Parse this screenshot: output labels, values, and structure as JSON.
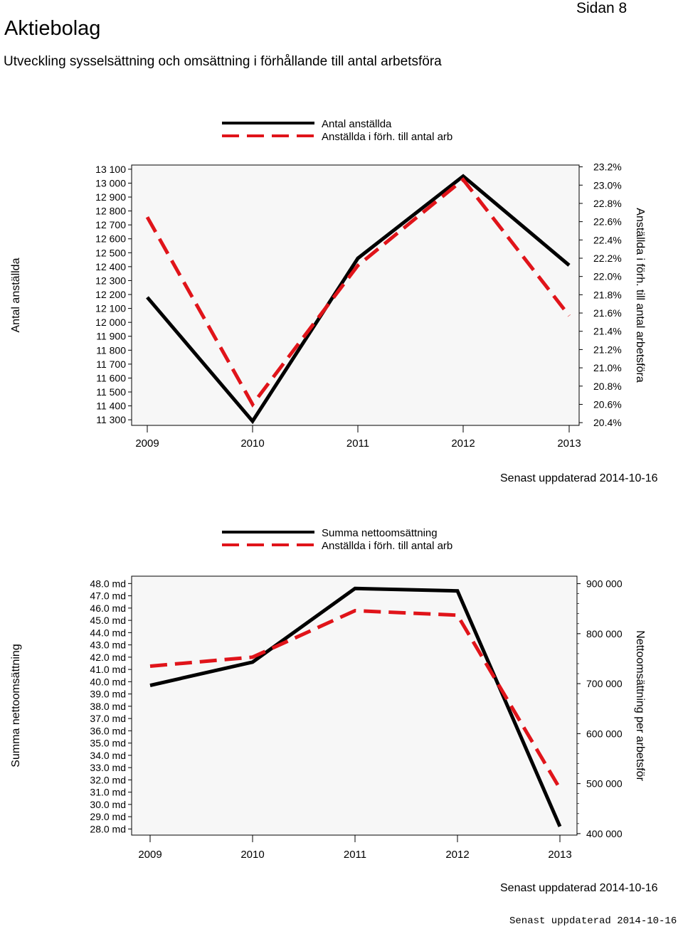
{
  "page": {
    "title": "Aktiebolag",
    "page_number": "Sidan 8",
    "subtitle": "Utveckling sysselsättning och omsättning i förhållande till antal arbetsföra",
    "footer_stamp": "Senast uppdaterad 2014-10-16"
  },
  "colors": {
    "primary_series": "#000000",
    "secondary_series": "#e0141a",
    "plot_background": "#f7f7f7"
  },
  "chart_data": [
    {
      "type": "line",
      "x": [
        2009,
        2010,
        2011,
        2012,
        2013
      ],
      "x_ticks": [
        "2009",
        "2010",
        "2011",
        "2012",
        "2013"
      ],
      "ylabel": "Antal anställda",
      "y2label": "Anställda i förh. till antal arbetsföra",
      "ylim": [
        11260,
        13130
      ],
      "y2lim": [
        20.37,
        23.22
      ],
      "y_ticks": [
        "13 100",
        "13 000",
        "12 900",
        "12 800",
        "12 700",
        "12 600",
        "12 500",
        "12 400",
        "12 300",
        "12 200",
        "12 100",
        "12 000",
        "11 900",
        "11 800",
        "11 700",
        "11 600",
        "11 500",
        "11 400",
        "11 300"
      ],
      "y2_ticks": [
        "23.2%",
        "23.0%",
        "22.8%",
        "22.6%",
        "22.4%",
        "22.2%",
        "22.0%",
        "21.8%",
        "21.6%",
        "21.4%",
        "21.2%",
        "21.0%",
        "20.8%",
        "20.6%",
        "20.4%"
      ],
      "series": [
        {
          "name": "Antal anställda",
          "axis": "left",
          "style": "solid",
          "values": [
            12180,
            11290,
            12460,
            13050,
            12410
          ]
        },
        {
          "name": "Anställda i förh. till antal arb",
          "axis": "right",
          "style": "dashed",
          "values": [
            22.65,
            20.6,
            22.12,
            23.06,
            21.57
          ]
        }
      ],
      "legend_placement": "top",
      "updated": "Senast uppdaterad 2014-10-16"
    },
    {
      "type": "line",
      "x": [
        2009,
        2010,
        2011,
        2012,
        2013
      ],
      "x_ticks": [
        "2009",
        "2010",
        "2011",
        "2012",
        "2013"
      ],
      "ylabel": "Summa nettoomsättning",
      "y2label": "Nettoomsättning per arbetsför",
      "ylim": [
        27.5,
        48.6
      ],
      "y2lim": [
        397000,
        915000
      ],
      "y_ticks": [
        "48.0 md",
        "47.0 md",
        "46.0 md",
        "45.0 md",
        "44.0 md",
        "43.0 md",
        "42.0 md",
        "41.0 md",
        "40.0 md",
        "39.0 md",
        "38.0 md",
        "37.0 md",
        "36.0 md",
        "35.0 md",
        "34.0 md",
        "33.0 md",
        "32.0 md",
        "31.0 md",
        "30.0 md",
        "29.0 md",
        "28.0 md"
      ],
      "y2_ticks": [
        "900 000",
        "800 000",
        "700 000",
        "600 000",
        "500 000",
        "400 000"
      ],
      "series": [
        {
          "name": "Summa nettoomsättning",
          "axis": "left",
          "style": "solid",
          "values": [
            39.7,
            41.6,
            47.6,
            47.4,
            28.2
          ]
        },
        {
          "name": "Anställda i förh. till antal arb",
          "axis": "right",
          "style": "dashed",
          "values": [
            735000,
            753000,
            846000,
            837000,
            490000
          ]
        }
      ],
      "legend_placement": "top",
      "updated": "Senast uppdaterad 2014-10-16"
    }
  ]
}
